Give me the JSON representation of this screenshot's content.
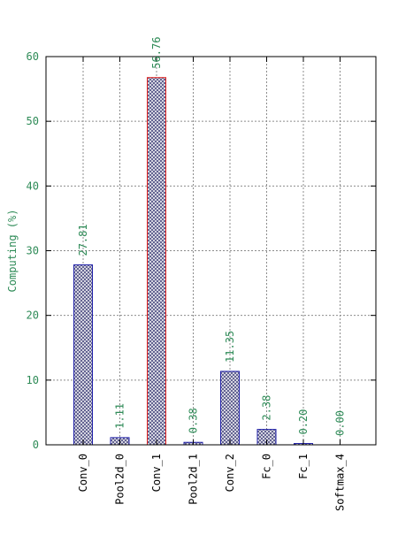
{
  "chart_data": {
    "type": "bar",
    "title": "",
    "xlabel": "",
    "ylabel": "Computing (%)",
    "ylim": [
      0,
      60
    ],
    "yticks": [
      0,
      10,
      20,
      30,
      40,
      50,
      60
    ],
    "grid": true,
    "categories": [
      "Conv_0",
      "Pool2d_0",
      "Conv_1",
      "Pool2d_1",
      "Conv_2",
      "Fc_0",
      "Fc_1",
      "Softmax_4"
    ],
    "values": [
      27.81,
      1.11,
      56.76,
      0.38,
      11.35,
      2.38,
      0.2,
      0.0
    ],
    "value_labels": [
      "27.81",
      "1.11",
      "56.76",
      "0.38",
      "11.35",
      "2.38",
      "0.20",
      "0.00"
    ],
    "highlight_index": 2,
    "colors": {
      "bar_outline": "#1f1fa8",
      "highlight_outline": "#e0201e",
      "bar_pattern": "#5a5a8a",
      "text_accent": "#2e8b57",
      "grid": "#8c8c8c",
      "axis": "#000000"
    }
  }
}
